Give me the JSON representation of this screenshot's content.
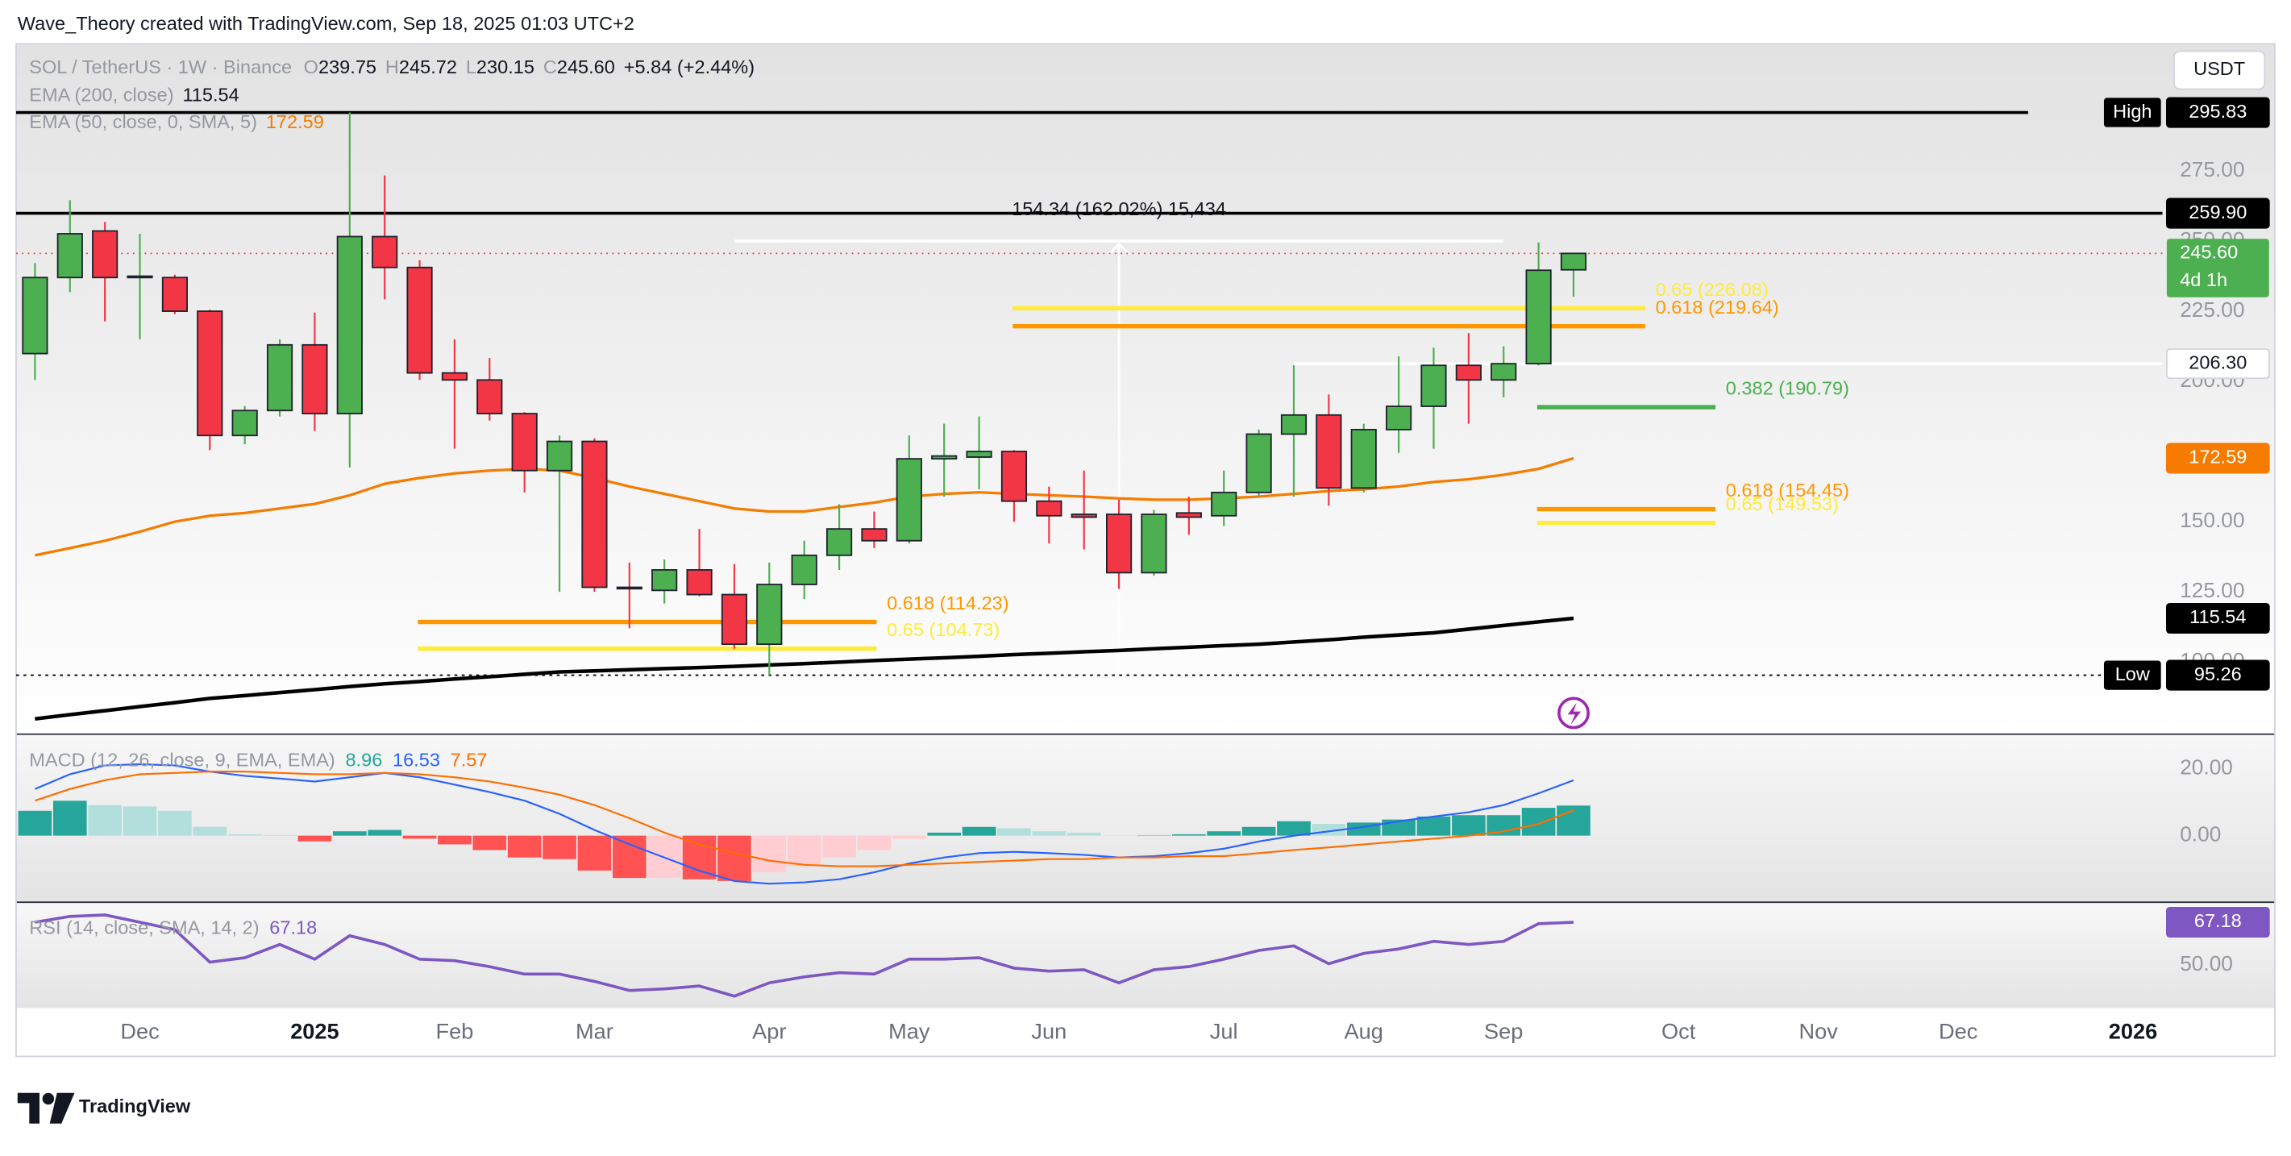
{
  "header": {
    "text": "Wave_Theory created with TradingView.com, Sep 18, 2025 01:03 UTC+2"
  },
  "footer": {
    "brand": "TradingView"
  },
  "chart_data": [
    {
      "type": "candlestick",
      "symbol": "SOL / TetherUS · 1W · Binance",
      "ohlc_letters": [
        "O",
        "H",
        "L",
        "C"
      ],
      "ohlc_labels": [
        "239.75",
        "245.72",
        "230.15",
        "245.60"
      ],
      "change": "+5.84 (+2.44%)",
      "currency": "USDT",
      "up_color": "#4caf50",
      "down_color": "#f23645",
      "x": [
        0,
        1,
        2,
        3,
        4,
        5,
        6,
        7,
        8,
        9,
        10,
        11,
        12,
        13,
        14,
        15,
        16,
        17,
        18,
        19,
        20,
        21,
        22,
        23,
        24,
        25,
        26,
        27,
        28,
        29,
        30,
        31,
        32,
        33,
        34,
        35,
        36,
        37,
        38,
        39,
        40,
        41,
        42,
        43,
        44
      ],
      "open": [
        209.9,
        237,
        253.6,
        237,
        237,
        225,
        180.7,
        189.6,
        213,
        188.5,
        251.6,
        240.6,
        203,
        200.5,
        188.5,
        168.2,
        178.6,
        126.6,
        125.5,
        132.8,
        124,
        106.3,
        127.6,
        138,
        147.4,
        143.2,
        172.4,
        173,
        175,
        157.3,
        152.6,
        152.6,
        131.8,
        153.1,
        152.1,
        160.4,
        181.2,
        188,
        162,
        182.8,
        191.1,
        205.7,
        200.5,
        206.3,
        239.75
      ],
      "high": [
        242.2,
        264.6,
        256.8,
        252.6,
        238,
        225.5,
        191.2,
        215,
        224.5,
        295.83,
        273.4,
        243.2,
        215,
        208.3,
        189,
        180.7,
        179.7,
        135.4,
        136.5,
        147.4,
        134.9,
        135.4,
        143.2,
        156.2,
        153.6,
        180.7,
        184.9,
        187.5,
        175.5,
        162.5,
        168.2,
        157.8,
        154.2,
        158.9,
        168.2,
        182.8,
        205.7,
        195.3,
        184.9,
        208.9,
        212,
        217.2,
        212.5,
        249.5,
        245.72
      ],
      "low": [
        200.5,
        231.8,
        221.4,
        215,
        224,
        175.5,
        177.6,
        187.5,
        182.3,
        169.3,
        229.2,
        200.5,
        176,
        186,
        160.4,
        125,
        125,
        112,
        120.8,
        123.4,
        104.7,
        95.26,
        122.4,
        132.8,
        140.6,
        142.2,
        158.9,
        161.5,
        150,
        142.2,
        140.1,
        126,
        130.7,
        145.3,
        148.4,
        158.9,
        158.9,
        155.7,
        160.4,
        174.5,
        176,
        184.9,
        194.3,
        205.7,
        230.15
      ],
      "close": [
        237,
        252.6,
        237,
        237.5,
        225,
        180.7,
        189.6,
        213,
        188.5,
        251.6,
        240.6,
        203,
        200.5,
        188.5,
        168.2,
        178.6,
        126.6,
        126.5,
        132.8,
        124,
        106.3,
        127.6,
        138,
        147.4,
        143.2,
        172.4,
        173.4,
        175,
        157.3,
        152.1,
        151.6,
        131.8,
        152.6,
        151.6,
        160.4,
        181.2,
        188,
        162,
        182.8,
        191.1,
        205.7,
        200.5,
        206.3,
        239.6,
        245.6
      ],
      "lines": [
        {
          "name": "EMA (200, close)",
          "color": "#000000",
          "last_label": "115.54",
          "values": [
            79.7,
            81.2,
            82.6,
            84.1,
            85.5,
            87.0,
            88.0,
            89.1,
            90.1,
            91.2,
            92.2,
            93.0,
            93.9,
            94.7,
            95.6,
            96.4,
            96.8,
            97.2,
            97.6,
            98.0,
            98.4,
            98.9,
            99.4,
            99.9,
            100.5,
            101.0,
            101.5,
            102.0,
            102.6,
            103.1,
            103.6,
            104.1,
            104.7,
            105.2,
            105.8,
            106.3,
            107.1,
            107.9,
            108.8,
            109.6,
            110.4,
            111.7,
            113.0,
            114.3,
            115.54
          ]
        },
        {
          "name": "EMA (50, close, 0, SMA, 5)",
          "color": "#f57c00",
          "last_label": "172.59",
          "values": [
            138,
            140.6,
            143.2,
            146.4,
            150,
            152.1,
            153.1,
            154.7,
            156.3,
            159.4,
            163.5,
            165.6,
            167.2,
            168.2,
            168.8,
            168.2,
            165.6,
            162.5,
            159.9,
            157.3,
            154.7,
            153.6,
            153.6,
            155.2,
            156.8,
            158.9,
            159.9,
            160.4,
            159.9,
            159.4,
            158.9,
            158.3,
            157.8,
            157.8,
            158.3,
            158.9,
            159.9,
            160.9,
            161.5,
            162.5,
            164.1,
            165.1,
            166.7,
            168.8,
            172.59
          ]
        }
      ],
      "levels": [
        {
          "value": 295.83,
          "label": "295.83",
          "tag": "High",
          "color": "#000000",
          "x_range": [
            -0.54,
            57
          ]
        },
        {
          "value": 259.9,
          "label": "259.90",
          "color": "#000000"
        },
        {
          "value": 206.3,
          "label": "206.30",
          "color": "#ffffff",
          "x_range": [
            36,
            60.84
          ]
        },
        {
          "value": 95.26,
          "label": "95.26",
          "tag": "Low",
          "color": "#000000",
          "dashed": true
        }
      ],
      "last": {
        "value": 245.6,
        "label": "245.60",
        "countdown": "4d 1h",
        "color": "#4caf50",
        "line_color": "#f23645"
      },
      "fib_levels": [
        {
          "value": 226.08,
          "label": "0.65 (226.08)",
          "color": "#ffeb3b",
          "x_range": [
            27.96,
            46.05
          ]
        },
        {
          "value": 219.64,
          "label": "0.618 (219.64)",
          "color": "#ff9800",
          "x_range": [
            27.96,
            46.05
          ]
        },
        {
          "value": 190.79,
          "label": "0.382 (190.79)",
          "color": "#4caf50",
          "x_range": [
            42.96,
            48.06
          ]
        },
        {
          "value": 154.45,
          "label": "0.618 (154.45)",
          "color": "#ff9800",
          "x_range": [
            42.96,
            48.06
          ]
        },
        {
          "value": 149.53,
          "label": "0.65 (149.53)",
          "color": "#ffeb3b",
          "x_range": [
            42.96,
            48.06
          ]
        },
        {
          "value": 114.23,
          "label": "0.618 (114.23)",
          "color": "#ff9800",
          "x_range": [
            10.95,
            24.07
          ]
        },
        {
          "value": 104.73,
          "label": "0.65 (104.73)",
          "color": "#ffeb3b",
          "x_range": [
            10.95,
            24.07
          ]
        }
      ],
      "measure": {
        "label": "154.34 (162.02%) 15,434",
        "x": 31,
        "y_range": [
          95.26,
          250
        ],
        "x_range": [
          20,
          42
        ],
        "color": "#ffffff"
      },
      "xlim": [
        -0.54,
        60.84
      ],
      "ylim": [
        74.5,
        320.3
      ],
      "yticks": [
        {
          "value": 100,
          "label": "100.00"
        },
        {
          "value": 125,
          "label": "125.00"
        },
        {
          "value": 150,
          "label": "150.00"
        },
        {
          "value": 200,
          "label": "200.00"
        },
        {
          "value": 225,
          "label": "225.00"
        },
        {
          "value": 250,
          "label": "250.00"
        },
        {
          "value": 275,
          "label": "275.00"
        }
      ],
      "xticks": [
        {
          "value": 3,
          "label": "Dec"
        },
        {
          "value": 8,
          "label": "2025"
        },
        {
          "value": 12,
          "label": "Feb"
        },
        {
          "value": 16,
          "label": "Mar"
        },
        {
          "value": 21,
          "label": "Apr"
        },
        {
          "value": 25,
          "label": "May"
        },
        {
          "value": 29,
          "label": "Jun"
        },
        {
          "value": 34,
          "label": "Jul"
        },
        {
          "value": 38,
          "label": "Aug"
        },
        {
          "value": 42,
          "label": "Sep"
        },
        {
          "value": 47,
          "label": "Oct"
        },
        {
          "value": 51,
          "label": "Nov"
        },
        {
          "value": 55,
          "label": "Dec"
        },
        {
          "value": 60,
          "label": "2026"
        }
      ],
      "grid": false
    },
    {
      "type": "macd",
      "title": "MACD (12, 26, close, 9, EMA, EMA)",
      "histogram": {
        "last_label": "8.96",
        "colors": {
          "grow_above": "#26a69a",
          "fall_above": "#b2dfdb",
          "grow_below": "#ffcdd2",
          "fall_below": "#ff5252"
        },
        "values": [
          7.4,
          10.4,
          9.1,
          8.7,
          7.4,
          2.6,
          0.4,
          0.2,
          -1.7,
          1.3,
          1.7,
          -0.9,
          -2.6,
          -4.3,
          -6.5,
          -7.0,
          -10.4,
          -12.6,
          -12.6,
          -13.0,
          -13.5,
          -10.9,
          -9.1,
          -6.5,
          -4.3,
          -0.9,
          0.9,
          2.6,
          2.2,
          1.3,
          0.9,
          0.05,
          0.1,
          0.4,
          1.3,
          2.6,
          4.3,
          3.5,
          3.9,
          4.8,
          5.7,
          6.1,
          6.1,
          8.3,
          8.96
        ]
      },
      "macd": {
        "color": "#2962ff",
        "last_label": "16.53",
        "values": [
          13.9,
          18.3,
          20.9,
          21.3,
          20.9,
          19.1,
          17.8,
          17.0,
          16.1,
          17.4,
          18.7,
          17.4,
          15.2,
          13.0,
          10.4,
          6.5,
          1.7,
          -2.6,
          -6.5,
          -10.4,
          -13.5,
          -14.3,
          -13.9,
          -13.0,
          -10.9,
          -8.3,
          -6.5,
          -5.2,
          -4.8,
          -5.2,
          -5.7,
          -6.5,
          -6.1,
          -5.2,
          -3.9,
          -1.7,
          0,
          1.3,
          2.6,
          4.3,
          5.7,
          7.0,
          9.1,
          12.6,
          16.53
        ]
      },
      "signal": {
        "color": "#ff6d00",
        "last_label": "7.57",
        "values": [
          10.4,
          13.9,
          16.5,
          18.3,
          18.7,
          19.1,
          19.1,
          18.7,
          18.3,
          18.3,
          18.7,
          18.3,
          17.4,
          16.1,
          14.3,
          12.2,
          9.1,
          5.2,
          0.9,
          -2.6,
          -5.2,
          -7.4,
          -8.7,
          -9.1,
          -9.1,
          -8.7,
          -8.3,
          -7.8,
          -7.4,
          -7.0,
          -7.0,
          -6.5,
          -6.5,
          -6.1,
          -6.1,
          -5.2,
          -4.3,
          -3.5,
          -2.6,
          -1.7,
          -0.9,
          0,
          1.3,
          3.5,
          7.57
        ]
      },
      "ylim": [
        -19.6,
        30
      ],
      "yticks": [
        {
          "value": 0,
          "label": "0.00"
        },
        {
          "value": 20,
          "label": "20.00"
        }
      ]
    },
    {
      "type": "line",
      "title": "RSI (14, close, SMA, 14, 2)",
      "color": "#7e57c2",
      "last_label": "67.18",
      "values": [
        67.2,
        69.5,
        70.1,
        67.2,
        64.2,
        51.2,
        53.0,
        58.3,
        52.4,
        61.8,
        58.3,
        52.4,
        51.8,
        49.4,
        46.4,
        46.4,
        43.5,
        39.9,
        40.5,
        41.7,
        37.6,
        42.9,
        45.3,
        47.0,
        46.4,
        52.4,
        52.4,
        53.0,
        48.8,
        47.6,
        48.2,
        42.9,
        48.2,
        49.4,
        52.4,
        55.9,
        57.7,
        50.6,
        54.7,
        56.5,
        59.5,
        58.3,
        59.5,
        66.6,
        67.18
      ],
      "ylim": [
        32.8,
        74.9
      ],
      "yticks": [
        {
          "value": 50,
          "label": "50.00"
        }
      ]
    }
  ]
}
